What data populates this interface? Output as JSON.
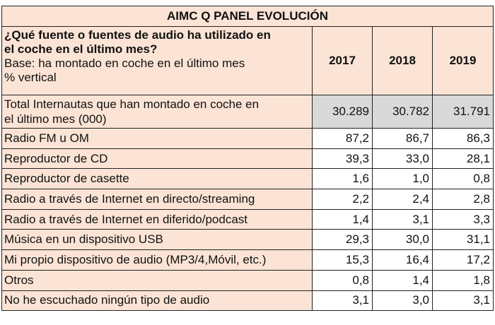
{
  "title": "AIMC Q PANEL EVOLUCIÓN",
  "header": {
    "question_line1": "¿Qué fuente o fuentes de audio ha utilizado en",
    "question_line2": "el coche en el último mes?",
    "base_line1": "Base: ha montado en coche en el último mes",
    "base_line2": "% vertical",
    "years": [
      "2017",
      "2018",
      "2019"
    ]
  },
  "total": {
    "label_line1": "Total Internautas que han montado en coche en",
    "label_line2": "el último mes (000)",
    "values": [
      "30.289",
      "30.782",
      "31.791"
    ]
  },
  "rows": [
    {
      "label": "Radio FM u OM",
      "values": [
        "87,2",
        "86,7",
        "86,3"
      ]
    },
    {
      "label": "Reproductor de CD",
      "values": [
        "39,3",
        "33,0",
        "28,1"
      ]
    },
    {
      "label": "Reproductor de casette",
      "values": [
        "1,6",
        "1,0",
        "0,8"
      ]
    },
    {
      "label": "Radio a través de Internet en directo/streaming",
      "values": [
        "2,2",
        "2,4",
        "2,8"
      ]
    },
    {
      "label": "Radio a través de Internet en diferido/podcast",
      "values": [
        "1,4",
        "3,1",
        "3,3"
      ]
    },
    {
      "label": "Música en un dispositivo USB",
      "values": [
        "29,3",
        "30,0",
        "31,1"
      ]
    },
    {
      "label": "Mi propio dispositivo de audio (MP3/4,Móvil, etc.)",
      "values": [
        "15,3",
        "16,4",
        "17,2"
      ]
    },
    {
      "label": "Otros",
      "values": [
        "0,8",
        "1,4",
        "1,8"
      ]
    },
    {
      "label": "No he escuchado ningún tipo de audio",
      "values": [
        "3,1",
        "3,0",
        "3,1"
      ]
    }
  ]
}
